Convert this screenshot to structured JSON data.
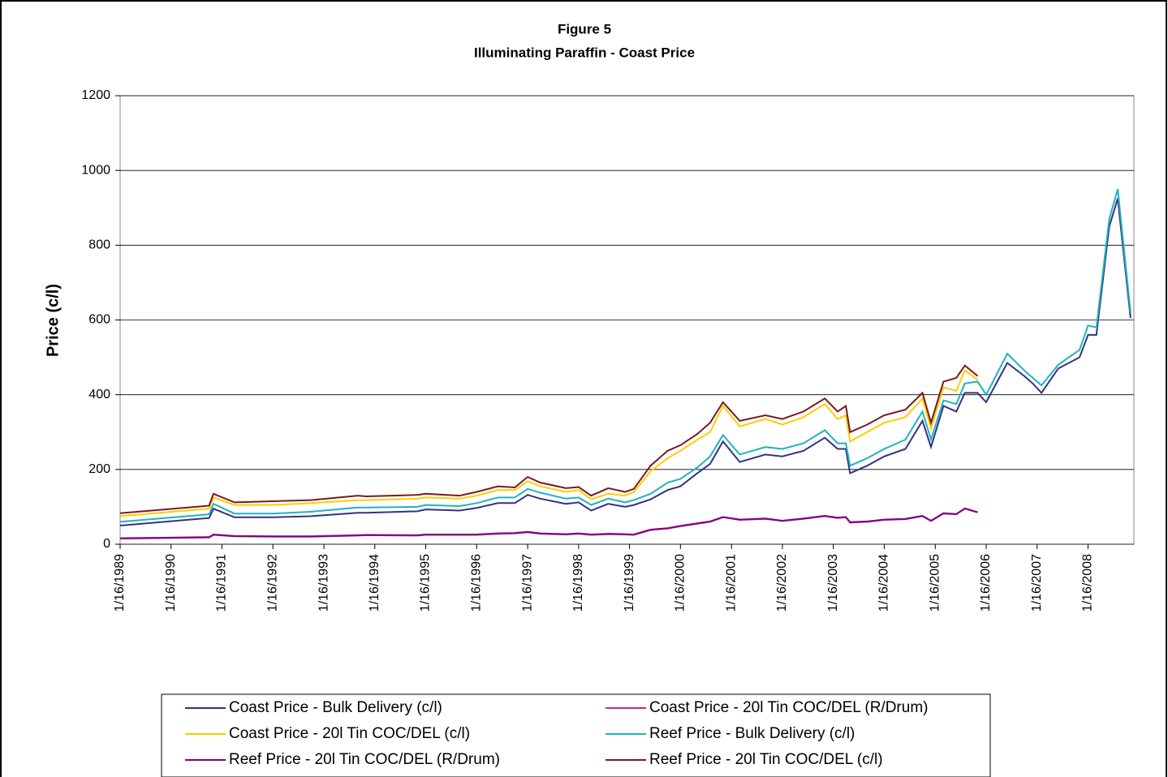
{
  "chart_data": {
    "type": "line",
    "title": "Figure 5",
    "subtitle": "Illuminating Paraffin - Coast Price",
    "y_label": "Price (c/l)",
    "x": [
      "1989-01-16",
      "1990-10-16",
      "1990-11-16",
      "1991-04-16",
      "1992-01-16",
      "1992-10-16",
      "1993-09-16",
      "1993-11-16",
      "1994-11-16",
      "1995-01-16",
      "1995-09-16",
      "1996-01-16",
      "1996-06-16",
      "1996-10-16",
      "1997-01-16",
      "1997-04-16",
      "1997-10-16",
      "1998-01-16",
      "1998-04-16",
      "1998-08-16",
      "1998-12-16",
      "1999-02-16",
      "1999-06-16",
      "1999-10-16",
      "2000-01-16",
      "2000-05-16",
      "2000-08-16",
      "2000-11-16",
      "2001-03-16",
      "2001-09-16",
      "2002-01-16",
      "2002-06-16",
      "2002-11-16",
      "2003-02-16",
      "2003-04-16",
      "2003-05-16",
      "2003-09-16",
      "2004-01-16",
      "2004-06-16",
      "2004-10-16",
      "2004-12-16",
      "2005-03-16",
      "2005-06-16",
      "2005-08-16",
      "2005-11-16",
      "2006-01-16",
      "2006-06-16",
      "2006-10-16",
      "2006-12-16",
      "2007-02-16",
      "2007-06-16",
      "2007-11-16",
      "2008-01-16",
      "2008-03-16",
      "2008-06-16",
      "2008-08-16",
      "2008-11-16"
    ],
    "xlim": [
      "1989-01-16",
      "2008-12-10"
    ],
    "xticks": [
      {
        "value": "1989-01-16",
        "label": "1/16/1989"
      },
      {
        "value": "1990-01-16",
        "label": "1/16/1990"
      },
      {
        "value": "1991-01-16",
        "label": "1/16/1991"
      },
      {
        "value": "1992-01-16",
        "label": "1/16/1992"
      },
      {
        "value": "1993-01-16",
        "label": "1/16/1993"
      },
      {
        "value": "1994-01-16",
        "label": "1/16/1994"
      },
      {
        "value": "1995-01-16",
        "label": "1/16/1995"
      },
      {
        "value": "1996-01-16",
        "label": "1/16/1996"
      },
      {
        "value": "1997-01-16",
        "label": "1/16/1997"
      },
      {
        "value": "1998-01-16",
        "label": "1/16/1998"
      },
      {
        "value": "1999-01-16",
        "label": "1/16/1999"
      },
      {
        "value": "2000-01-16",
        "label": "1/16/2000"
      },
      {
        "value": "2001-01-16",
        "label": "1/16/2001"
      },
      {
        "value": "2002-01-16",
        "label": "1/16/2002"
      },
      {
        "value": "2003-01-16",
        "label": "1/16/2003"
      },
      {
        "value": "2004-01-16",
        "label": "1/16/2004"
      },
      {
        "value": "2005-01-16",
        "label": "1/16/2005"
      },
      {
        "value": "2006-01-16",
        "label": "1/16/2006"
      },
      {
        "value": "2007-01-16",
        "label": "1/16/2007"
      },
      {
        "value": "2008-01-16",
        "label": "1/16/2008"
      }
    ],
    "ylim": [
      0,
      1200
    ],
    "yticks": [
      0,
      200,
      400,
      600,
      800,
      1000,
      1200
    ],
    "grid": true,
    "legend": "bottom",
    "series": [
      {
        "name": "Coast Price - Bulk  Delivery (c/l)",
        "color": "#333380",
        "values": [
          50,
          70,
          95,
          72,
          72,
          75,
          84,
          84,
          88,
          93,
          90,
          97,
          110,
          110,
          132,
          122,
          108,
          112,
          90,
          108,
          100,
          105,
          120,
          145,
          155,
          190,
          215,
          275,
          220,
          240,
          235,
          250,
          285,
          255,
          255,
          190,
          210,
          235,
          255,
          330,
          260,
          370,
          355,
          405,
          405,
          380,
          485,
          450,
          430,
          405,
          470,
          500,
          560,
          560,
          850,
          925,
          605
        ]
      },
      {
        "name": "Coast Price - 20l Tin  COC/DEL (R/Drum)",
        "color": "#b0309a",
        "values": [
          15,
          18,
          25,
          21,
          20,
          20,
          23,
          24,
          23,
          25,
          25,
          25,
          28,
          29,
          32,
          28,
          26,
          28,
          25,
          27,
          26,
          25,
          38,
          42,
          48,
          55,
          60,
          72,
          65,
          68,
          62,
          68,
          75,
          70,
          72,
          58,
          60,
          65,
          67,
          75,
          62,
          82,
          80,
          95,
          85,
          null,
          null,
          null,
          null,
          null,
          null,
          null,
          null,
          null,
          null,
          null,
          null
        ]
      },
      {
        "name": "Coast Price - 20l Tin  COC/DEL (c/l)",
        "color": "#ffcc00",
        "values": [
          75,
          95,
          125,
          105,
          105,
          110,
          118,
          118,
          122,
          125,
          122,
          130,
          145,
          145,
          168,
          155,
          140,
          145,
          120,
          135,
          130,
          140,
          195,
          230,
          250,
          280,
          300,
          370,
          315,
          335,
          320,
          340,
          375,
          335,
          345,
          275,
          300,
          325,
          340,
          390,
          310,
          420,
          410,
          465,
          440,
          null,
          null,
          null,
          null,
          null,
          null,
          null,
          null,
          null,
          null,
          null,
          null
        ]
      },
      {
        "name": "Reef Price - Bulk  Delivery (c/l)",
        "color": "#20b2c0",
        "values": [
          60,
          80,
          108,
          82,
          82,
          87,
          98,
          98,
          100,
          105,
          102,
          110,
          125,
          125,
          148,
          138,
          122,
          125,
          105,
          122,
          112,
          118,
          135,
          165,
          175,
          205,
          235,
          292,
          240,
          260,
          255,
          270,
          305,
          270,
          270,
          210,
          230,
          255,
          280,
          355,
          280,
          385,
          375,
          430,
          435,
          400,
          510,
          465,
          445,
          425,
          480,
          520,
          585,
          580,
          870,
          950,
          620
        ]
      },
      {
        "name": "Reef Price - 20l Tin  COC/DEL (R/Drum)",
        "color": "#800080",
        "values": [
          16,
          19,
          26,
          22,
          21,
          21,
          24,
          25,
          24,
          26,
          26,
          26,
          29,
          30,
          33,
          29,
          27,
          29,
          26,
          28,
          27,
          26,
          39,
          43,
          49,
          56,
          61,
          73,
          66,
          69,
          63,
          69,
          76,
          71,
          73,
          59,
          61,
          66,
          68,
          76,
          63,
          83,
          81,
          96,
          86,
          null,
          null,
          null,
          null,
          null,
          null,
          null,
          null,
          null,
          null,
          null,
          null
        ]
      },
      {
        "name": "Reef Price - 20l Tin  COC/DEL (c/l)",
        "color": "#7a1a1a",
        "values": [
          83,
          103,
          135,
          112,
          115,
          118,
          130,
          128,
          132,
          135,
          130,
          140,
          155,
          152,
          180,
          165,
          150,
          153,
          130,
          150,
          140,
          148,
          210,
          250,
          265,
          295,
          325,
          380,
          330,
          345,
          335,
          355,
          390,
          355,
          370,
          300,
          320,
          345,
          360,
          405,
          325,
          435,
          445,
          478,
          450,
          null,
          null,
          null,
          null,
          null,
          null,
          null,
          null,
          null,
          null,
          null,
          null
        ]
      }
    ]
  }
}
